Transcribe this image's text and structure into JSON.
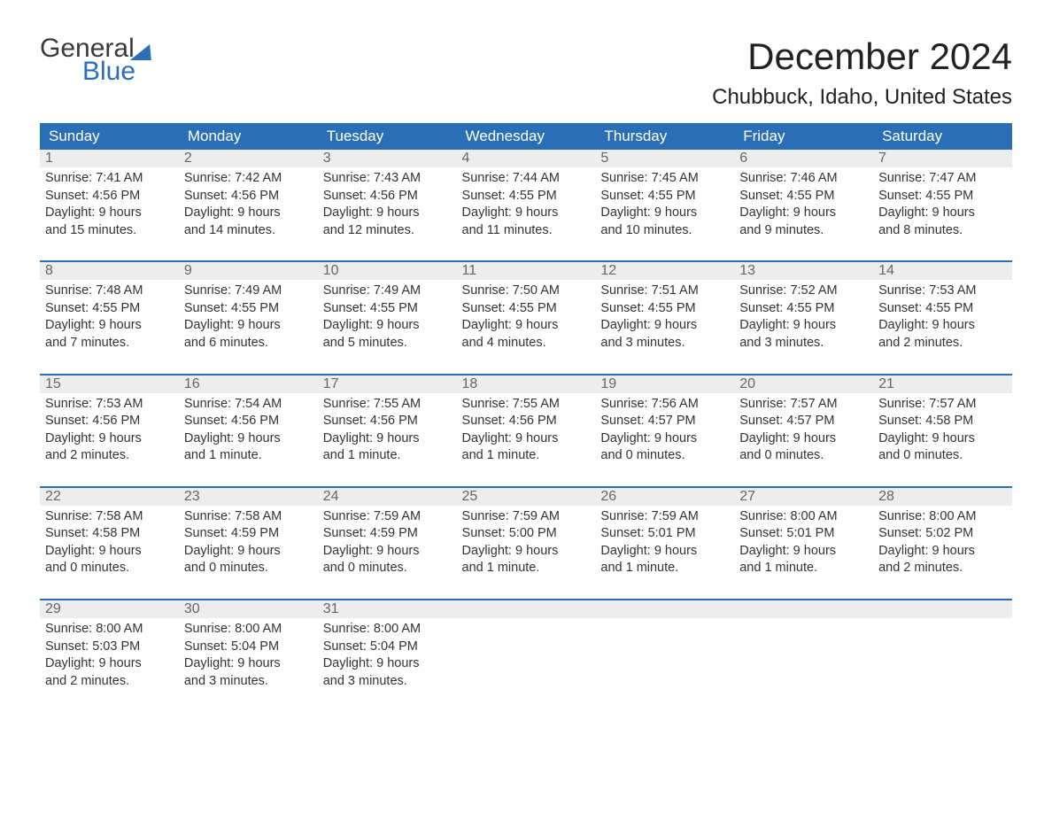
{
  "logo": {
    "word1": "General",
    "word2": "Blue"
  },
  "title": "December 2024",
  "location": "Chubbuck, Idaho, United States",
  "colors": {
    "header_bg": "#2a6fb5",
    "header_text": "#ffffff",
    "daynum_bg": "#ededed",
    "daynum_text": "#666666",
    "body_text": "#333333",
    "rule": "#2a6fb5",
    "page_bg": "#ffffff"
  },
  "typography": {
    "title_fontsize": 42,
    "location_fontsize": 24,
    "header_fontsize": 17,
    "daynum_fontsize": 16,
    "cell_fontsize": 14.5
  },
  "day_headers": [
    "Sunday",
    "Monday",
    "Tuesday",
    "Wednesday",
    "Thursday",
    "Friday",
    "Saturday"
  ],
  "weeks": [
    [
      {
        "day": "1",
        "sunrise": "Sunrise: 7:41 AM",
        "sunset": "Sunset: 4:56 PM",
        "dl1": "Daylight: 9 hours",
        "dl2": "and 15 minutes."
      },
      {
        "day": "2",
        "sunrise": "Sunrise: 7:42 AM",
        "sunset": "Sunset: 4:56 PM",
        "dl1": "Daylight: 9 hours",
        "dl2": "and 14 minutes."
      },
      {
        "day": "3",
        "sunrise": "Sunrise: 7:43 AM",
        "sunset": "Sunset: 4:56 PM",
        "dl1": "Daylight: 9 hours",
        "dl2": "and 12 minutes."
      },
      {
        "day": "4",
        "sunrise": "Sunrise: 7:44 AM",
        "sunset": "Sunset: 4:55 PM",
        "dl1": "Daylight: 9 hours",
        "dl2": "and 11 minutes."
      },
      {
        "day": "5",
        "sunrise": "Sunrise: 7:45 AM",
        "sunset": "Sunset: 4:55 PM",
        "dl1": "Daylight: 9 hours",
        "dl2": "and 10 minutes."
      },
      {
        "day": "6",
        "sunrise": "Sunrise: 7:46 AM",
        "sunset": "Sunset: 4:55 PM",
        "dl1": "Daylight: 9 hours",
        "dl2": "and 9 minutes."
      },
      {
        "day": "7",
        "sunrise": "Sunrise: 7:47 AM",
        "sunset": "Sunset: 4:55 PM",
        "dl1": "Daylight: 9 hours",
        "dl2": "and 8 minutes."
      }
    ],
    [
      {
        "day": "8",
        "sunrise": "Sunrise: 7:48 AM",
        "sunset": "Sunset: 4:55 PM",
        "dl1": "Daylight: 9 hours",
        "dl2": "and 7 minutes."
      },
      {
        "day": "9",
        "sunrise": "Sunrise: 7:49 AM",
        "sunset": "Sunset: 4:55 PM",
        "dl1": "Daylight: 9 hours",
        "dl2": "and 6 minutes."
      },
      {
        "day": "10",
        "sunrise": "Sunrise: 7:49 AM",
        "sunset": "Sunset: 4:55 PM",
        "dl1": "Daylight: 9 hours",
        "dl2": "and 5 minutes."
      },
      {
        "day": "11",
        "sunrise": "Sunrise: 7:50 AM",
        "sunset": "Sunset: 4:55 PM",
        "dl1": "Daylight: 9 hours",
        "dl2": "and 4 minutes."
      },
      {
        "day": "12",
        "sunrise": "Sunrise: 7:51 AM",
        "sunset": "Sunset: 4:55 PM",
        "dl1": "Daylight: 9 hours",
        "dl2": "and 3 minutes."
      },
      {
        "day": "13",
        "sunrise": "Sunrise: 7:52 AM",
        "sunset": "Sunset: 4:55 PM",
        "dl1": "Daylight: 9 hours",
        "dl2": "and 3 minutes."
      },
      {
        "day": "14",
        "sunrise": "Sunrise: 7:53 AM",
        "sunset": "Sunset: 4:55 PM",
        "dl1": "Daylight: 9 hours",
        "dl2": "and 2 minutes."
      }
    ],
    [
      {
        "day": "15",
        "sunrise": "Sunrise: 7:53 AM",
        "sunset": "Sunset: 4:56 PM",
        "dl1": "Daylight: 9 hours",
        "dl2": "and 2 minutes."
      },
      {
        "day": "16",
        "sunrise": "Sunrise: 7:54 AM",
        "sunset": "Sunset: 4:56 PM",
        "dl1": "Daylight: 9 hours",
        "dl2": "and 1 minute."
      },
      {
        "day": "17",
        "sunrise": "Sunrise: 7:55 AM",
        "sunset": "Sunset: 4:56 PM",
        "dl1": "Daylight: 9 hours",
        "dl2": "and 1 minute."
      },
      {
        "day": "18",
        "sunrise": "Sunrise: 7:55 AM",
        "sunset": "Sunset: 4:56 PM",
        "dl1": "Daylight: 9 hours",
        "dl2": "and 1 minute."
      },
      {
        "day": "19",
        "sunrise": "Sunrise: 7:56 AM",
        "sunset": "Sunset: 4:57 PM",
        "dl1": "Daylight: 9 hours",
        "dl2": "and 0 minutes."
      },
      {
        "day": "20",
        "sunrise": "Sunrise: 7:57 AM",
        "sunset": "Sunset: 4:57 PM",
        "dl1": "Daylight: 9 hours",
        "dl2": "and 0 minutes."
      },
      {
        "day": "21",
        "sunrise": "Sunrise: 7:57 AM",
        "sunset": "Sunset: 4:58 PM",
        "dl1": "Daylight: 9 hours",
        "dl2": "and 0 minutes."
      }
    ],
    [
      {
        "day": "22",
        "sunrise": "Sunrise: 7:58 AM",
        "sunset": "Sunset: 4:58 PM",
        "dl1": "Daylight: 9 hours",
        "dl2": "and 0 minutes."
      },
      {
        "day": "23",
        "sunrise": "Sunrise: 7:58 AM",
        "sunset": "Sunset: 4:59 PM",
        "dl1": "Daylight: 9 hours",
        "dl2": "and 0 minutes."
      },
      {
        "day": "24",
        "sunrise": "Sunrise: 7:59 AM",
        "sunset": "Sunset: 4:59 PM",
        "dl1": "Daylight: 9 hours",
        "dl2": "and 0 minutes."
      },
      {
        "day": "25",
        "sunrise": "Sunrise: 7:59 AM",
        "sunset": "Sunset: 5:00 PM",
        "dl1": "Daylight: 9 hours",
        "dl2": "and 1 minute."
      },
      {
        "day": "26",
        "sunrise": "Sunrise: 7:59 AM",
        "sunset": "Sunset: 5:01 PM",
        "dl1": "Daylight: 9 hours",
        "dl2": "and 1 minute."
      },
      {
        "day": "27",
        "sunrise": "Sunrise: 8:00 AM",
        "sunset": "Sunset: 5:01 PM",
        "dl1": "Daylight: 9 hours",
        "dl2": "and 1 minute."
      },
      {
        "day": "28",
        "sunrise": "Sunrise: 8:00 AM",
        "sunset": "Sunset: 5:02 PM",
        "dl1": "Daylight: 9 hours",
        "dl2": "and 2 minutes."
      }
    ],
    [
      {
        "day": "29",
        "sunrise": "Sunrise: 8:00 AM",
        "sunset": "Sunset: 5:03 PM",
        "dl1": "Daylight: 9 hours",
        "dl2": "and 2 minutes."
      },
      {
        "day": "30",
        "sunrise": "Sunrise: 8:00 AM",
        "sunset": "Sunset: 5:04 PM",
        "dl1": "Daylight: 9 hours",
        "dl2": "and 3 minutes."
      },
      {
        "day": "31",
        "sunrise": "Sunrise: 8:00 AM",
        "sunset": "Sunset: 5:04 PM",
        "dl1": "Daylight: 9 hours",
        "dl2": "and 3 minutes."
      },
      null,
      null,
      null,
      null
    ]
  ]
}
